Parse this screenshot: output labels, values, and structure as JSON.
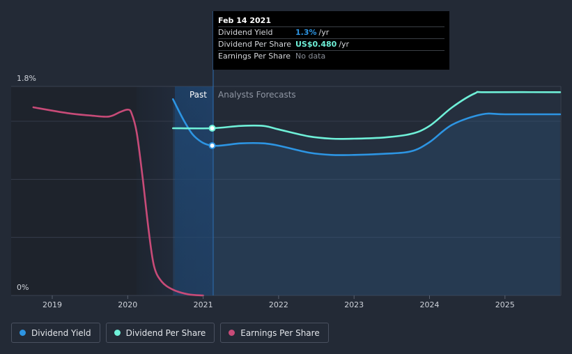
{
  "chart_data": {
    "type": "line",
    "y_axis": {
      "top_label": "1.8%",
      "bottom_label": "0%",
      "min": 0,
      "max": 1.8
    },
    "x_ticks": [
      "2019",
      "2020",
      "2021",
      "2022",
      "2023",
      "2024",
      "2025"
    ],
    "region_labels": {
      "past": "Past",
      "forecast": "Analysts Forecasts"
    },
    "tooltip": {
      "date": "Feb 14 2021",
      "rows": [
        {
          "label": "Dividend Yield",
          "value": "1.3%",
          "unit": "/yr",
          "color": "#2d95e3"
        },
        {
          "label": "Dividend Per Share",
          "value": "US$0.480",
          "unit": "/yr",
          "color": "#6ff0d8"
        },
        {
          "label": "Earnings Per Share",
          "value": "No data",
          "unit": "",
          "color": "#8a8f98"
        }
      ]
    },
    "series": [
      {
        "name": "Dividend Yield",
        "color": "#2d95e3",
        "points": [
          [
            2020.6,
            1.69
          ],
          [
            2020.75,
            1.5
          ],
          [
            2020.9,
            1.36
          ],
          [
            2021.12,
            1.29
          ],
          [
            2021.5,
            1.31
          ],
          [
            2021.8,
            1.31
          ],
          [
            2022.0,
            1.29
          ],
          [
            2022.4,
            1.23
          ],
          [
            2022.7,
            1.21
          ],
          [
            2023.0,
            1.21
          ],
          [
            2023.4,
            1.22
          ],
          [
            2023.75,
            1.24
          ],
          [
            2024.0,
            1.32
          ],
          [
            2024.3,
            1.47
          ],
          [
            2024.7,
            1.56
          ],
          [
            2025.0,
            1.56
          ],
          [
            2025.73,
            1.56
          ]
        ]
      },
      {
        "name": "Dividend Per Share",
        "color": "#6ff0d8",
        "points": [
          [
            2020.6,
            1.44
          ],
          [
            2021.12,
            1.44
          ],
          [
            2021.5,
            1.46
          ],
          [
            2021.8,
            1.46
          ],
          [
            2022.0,
            1.43
          ],
          [
            2022.4,
            1.37
          ],
          [
            2022.7,
            1.35
          ],
          [
            2023.0,
            1.35
          ],
          [
            2023.4,
            1.36
          ],
          [
            2023.75,
            1.39
          ],
          [
            2024.0,
            1.46
          ],
          [
            2024.3,
            1.62
          ],
          [
            2024.6,
            1.74
          ],
          [
            2024.75,
            1.75
          ],
          [
            2025.73,
            1.75
          ]
        ]
      },
      {
        "name": "Earnings Per Share",
        "color": "#c84b78",
        "points": [
          [
            2018.75,
            1.62
          ],
          [
            2019.2,
            1.57
          ],
          [
            2019.5,
            1.55
          ],
          [
            2019.75,
            1.54
          ],
          [
            2019.9,
            1.58
          ],
          [
            2020.0,
            1.6
          ],
          [
            2020.05,
            1.57
          ],
          [
            2020.12,
            1.4
          ],
          [
            2020.2,
            1.0
          ],
          [
            2020.28,
            0.55
          ],
          [
            2020.35,
            0.25
          ],
          [
            2020.45,
            0.12
          ],
          [
            2020.6,
            0.05
          ],
          [
            2020.8,
            0.01
          ],
          [
            2021.0,
            0.0
          ]
        ]
      }
    ],
    "markers": [
      {
        "x": 2021.12,
        "y": 1.29,
        "color": "#2d95e3"
      },
      {
        "x": 2021.12,
        "y": 1.44,
        "color": "#6ff0d8"
      }
    ]
  },
  "legend": [
    {
      "label": "Dividend Yield",
      "color": "#2d95e3"
    },
    {
      "label": "Dividend Per Share",
      "color": "#6ff0d8"
    },
    {
      "label": "Earnings Per Share",
      "color": "#c84b78"
    }
  ]
}
